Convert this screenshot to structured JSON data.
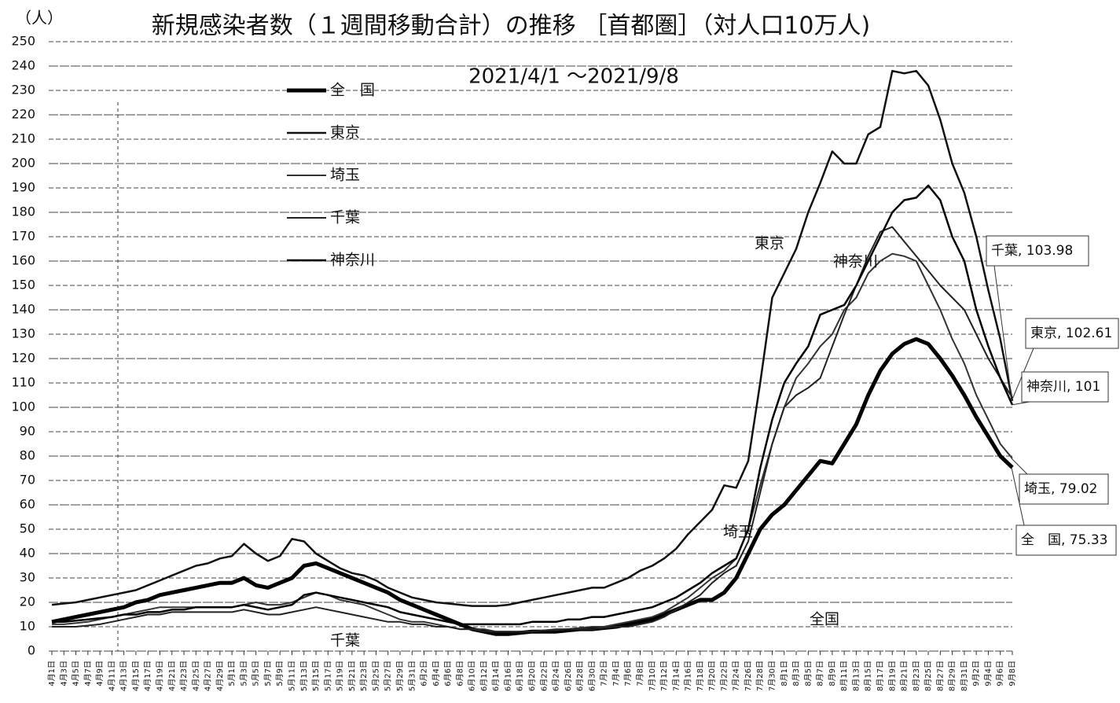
{
  "chart_data": {
    "type": "line",
    "title": "新規感染者数（１週間移動合計）の推移 ［首都圏］（対人口10万人)",
    "subtitle": "2021/4/1 ～2021/9/8",
    "y_unit": "（人）",
    "categories": [
      "4月1日",
      "4月3日",
      "4月5日",
      "4月7日",
      "4月9日",
      "4月11日",
      "4月13日",
      "4月15日",
      "4月17日",
      "4月19日",
      "4月21日",
      "4月23日",
      "4月25日",
      "4月27日",
      "4月29日",
      "5月1日",
      "5月3日",
      "5月5日",
      "5月7日",
      "5月9日",
      "5月11日",
      "5月13日",
      "5月15日",
      "5月17日",
      "5月19日",
      "5月21日",
      "5月23日",
      "5月25日",
      "5月27日",
      "5月29日",
      "5月31日",
      "6月2日",
      "6月4日",
      "6月6日",
      "6月8日",
      "6月10日",
      "6月12日",
      "6月14日",
      "6月16日",
      "6月18日",
      "6月20日",
      "6月22日",
      "6月24日",
      "6月26日",
      "6月28日",
      "6月30日",
      "7月2日",
      "7月4日",
      "7月6日",
      "7月8日",
      "7月10日",
      "7月12日",
      "7月14日",
      "7月16日",
      "7月18日",
      "7月20日",
      "7月22日",
      "7月24日",
      "7月26日",
      "7月28日",
      "7月30日",
      "8月1日",
      "8月3日",
      "8月5日",
      "8月7日",
      "8月9日",
      "8月11日",
      "8月13日",
      "8月15日",
      "8月17日",
      "8月19日",
      "8月21日",
      "8月23日",
      "8月25日",
      "8月27日",
      "8月29日",
      "8月31日",
      "9月2日",
      "9月4日",
      "9月6日",
      "9月8日"
    ],
    "series": [
      {
        "name": "全　国",
        "color": "#000000",
        "line_width": 5,
        "values": [
          12,
          13,
          14,
          15,
          16,
          17,
          18,
          20,
          21,
          23,
          24,
          25,
          26,
          27,
          28,
          28,
          30,
          27,
          26,
          28,
          30,
          35,
          36,
          34,
          32,
          30,
          28,
          26,
          24,
          21,
          19,
          17,
          15,
          13,
          11,
          9,
          8,
          7,
          7,
          7.5,
          8,
          8,
          8,
          8.5,
          9,
          9,
          9.5,
          10,
          11,
          12,
          13,
          15,
          17,
          19,
          21,
          21,
          24,
          30,
          40,
          50,
          56,
          60,
          66,
          72,
          78,
          77,
          85,
          93,
          105,
          115,
          122,
          126,
          128,
          126,
          120,
          113,
          105,
          96,
          88,
          80,
          75.33
        ]
      },
      {
        "name": "東京",
        "color": "#111111",
        "line_width": 2.5,
        "values": [
          19,
          19.5,
          20,
          21,
          22,
          23,
          24,
          25,
          27,
          29,
          31,
          33,
          35,
          36,
          38,
          39,
          44,
          40,
          37,
          39,
          46,
          45,
          40,
          37,
          34,
          32,
          31,
          29,
          26,
          24,
          22,
          21,
          20,
          19.5,
          19,
          18.5,
          18.5,
          18.5,
          19,
          20,
          21,
          22,
          23,
          24,
          25,
          26,
          26,
          28,
          30,
          33,
          35,
          38,
          42,
          48,
          53,
          58,
          68,
          67,
          78,
          110,
          145,
          155,
          165,
          180,
          192,
          205,
          200,
          200,
          212,
          215,
          238,
          237,
          238,
          232,
          218,
          200,
          188,
          170,
          148,
          128,
          102.61
        ]
      },
      {
        "name": "埼玉",
        "color": "#333333",
        "line_width": 2,
        "values": [
          11,
          11,
          11.5,
          12,
          13,
          14,
          15,
          16,
          17,
          18,
          18,
          18,
          18,
          18,
          18,
          18,
          19,
          20,
          19,
          19,
          20,
          22,
          24,
          23,
          21,
          20,
          19,
          17,
          15,
          13,
          12,
          12,
          11,
          10,
          9,
          9,
          9,
          8,
          8,
          8,
          8,
          8.5,
          9,
          9,
          9.5,
          10,
          10,
          11,
          12,
          13,
          14,
          16,
          19,
          22,
          26,
          30,
          33,
          38,
          50,
          68,
          85,
          100,
          112,
          118,
          125,
          130,
          140,
          145,
          155,
          160,
          163,
          162,
          160,
          150,
          140,
          128,
          118,
          105,
          95,
          85,
          79.02
        ]
      },
      {
        "name": "千葉",
        "color": "#222222",
        "line_width": 2,
        "values": [
          10,
          10,
          10,
          10.5,
          11,
          12,
          13,
          14,
          15,
          15,
          16,
          16,
          16,
          16,
          16,
          16,
          17,
          16,
          15,
          15,
          16,
          17,
          18,
          17,
          16,
          15,
          14,
          13,
          12,
          12,
          11,
          11,
          10,
          10,
          9,
          9,
          8,
          8,
          8,
          8,
          8,
          8.5,
          8.5,
          9,
          9,
          9,
          9.5,
          10,
          10,
          11,
          12,
          14,
          17,
          20,
          23,
          28,
          32,
          35,
          45,
          65,
          85,
          100,
          105,
          108,
          112,
          125,
          138,
          150,
          162,
          172,
          174,
          168,
          162,
          156,
          150,
          145,
          140,
          130,
          120,
          112,
          103.98
        ]
      },
      {
        "name": "神奈川",
        "color": "#000000",
        "line_width": 2.5,
        "values": [
          12,
          12,
          12.5,
          13,
          13.5,
          14,
          15,
          15,
          16,
          16,
          17,
          17,
          18,
          18,
          18,
          18,
          19,
          18,
          17,
          18,
          19,
          23,
          24,
          23,
          22,
          21,
          20,
          19,
          18,
          16,
          15,
          14,
          13,
          12,
          11,
          11,
          11,
          11,
          11,
          11,
          12,
          12,
          12,
          13,
          13,
          14,
          14,
          15,
          16,
          17,
          18,
          20,
          22,
          25,
          28,
          32,
          35,
          38,
          50,
          75,
          95,
          110,
          118,
          125,
          138,
          140,
          142,
          150,
          160,
          170,
          180,
          185,
          186,
          191,
          185,
          170,
          160,
          140,
          125,
          112,
          101
        ]
      }
    ],
    "annotations": [
      "千葉, 103.98",
      "東京, 102.61",
      "神奈川, 101",
      "埼玉, 79.02",
      "全　国, 75.33",
      "東京",
      "神奈川",
      "埼玉",
      "全国",
      "千葉"
    ],
    "ylim": [
      0,
      250
    ],
    "yticks": [
      0,
      10,
      20,
      30,
      40,
      50,
      60,
      70,
      80,
      90,
      100,
      110,
      120,
      130,
      140,
      150,
      160,
      170,
      180,
      190,
      200,
      210,
      220,
      230,
      240,
      250
    ],
    "grid": true
  }
}
